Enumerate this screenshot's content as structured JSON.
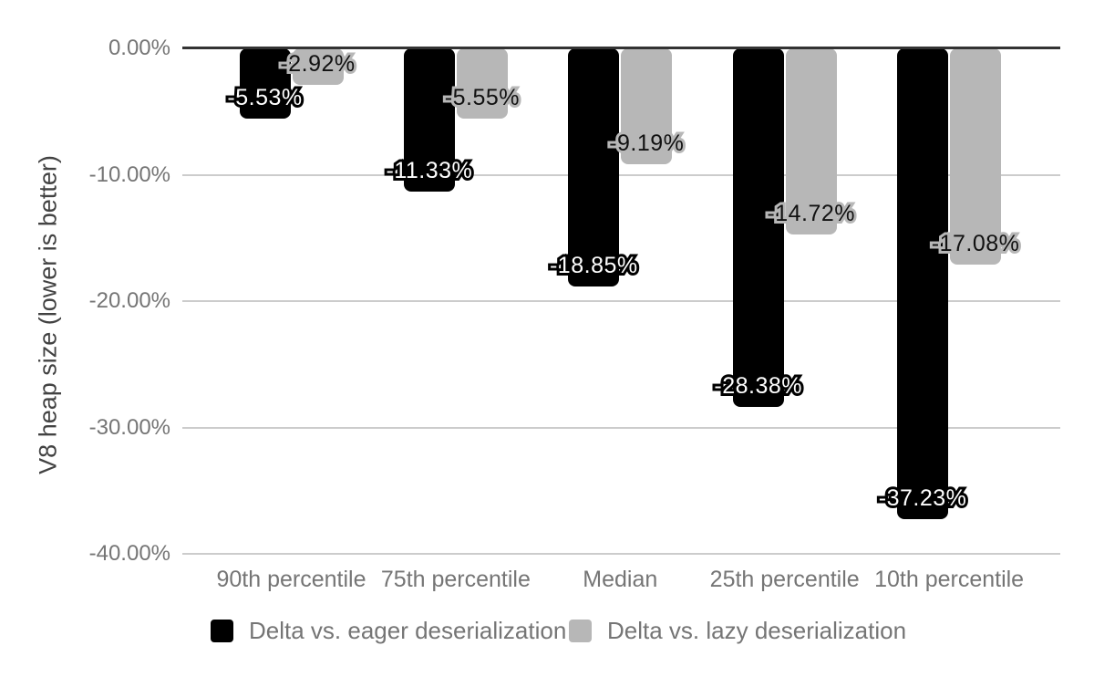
{
  "chart_data": {
    "type": "bar",
    "orientation": "vertical",
    "title": "",
    "xlabel": "",
    "ylabel": "V8 heap size (lower is better)",
    "categories": [
      "90th percentile",
      "75th percentile",
      "Median",
      "25th percentile",
      "10th percentile"
    ],
    "series": [
      {
        "key": "eager",
        "name": "Delta vs. eager deserialization",
        "color": "#000000",
        "label_text_color": "#ffffff",
        "values": [
          -5.53,
          -11.33,
          -18.85,
          -28.38,
          -37.23
        ],
        "data_labels": [
          "-5.53%",
          "-11.33%",
          "-18.85%",
          "-28.38%",
          "-37.23%"
        ]
      },
      {
        "key": "lazy",
        "name": "Delta vs. lazy deserialization",
        "color": "#b7b7b7",
        "label_text_color": "#111111",
        "values": [
          -2.92,
          -5.55,
          -9.19,
          -14.72,
          -17.08
        ],
        "data_labels": [
          "-2.92%",
          "-5.55%",
          "-9.19%",
          "-14.72%",
          "-17.08%"
        ]
      }
    ],
    "y_ticks": [
      {
        "value": 0,
        "label": "0.00%"
      },
      {
        "value": -10,
        "label": "-10.00%"
      },
      {
        "value": -20,
        "label": "-20.00%"
      },
      {
        "value": -30,
        "label": "-30.00%"
      },
      {
        "value": -40,
        "label": "-40.00%"
      }
    ],
    "ylim": [
      -40,
      0
    ],
    "grid": true,
    "legend_position": "bottom",
    "colors": {
      "background": "#ffffff",
      "tick_label": "#757575",
      "axis_title": "#424242",
      "category_label": "#757575",
      "legend_label": "#757575",
      "gridline": "#cccccc",
      "zero_line": "#333333"
    }
  }
}
